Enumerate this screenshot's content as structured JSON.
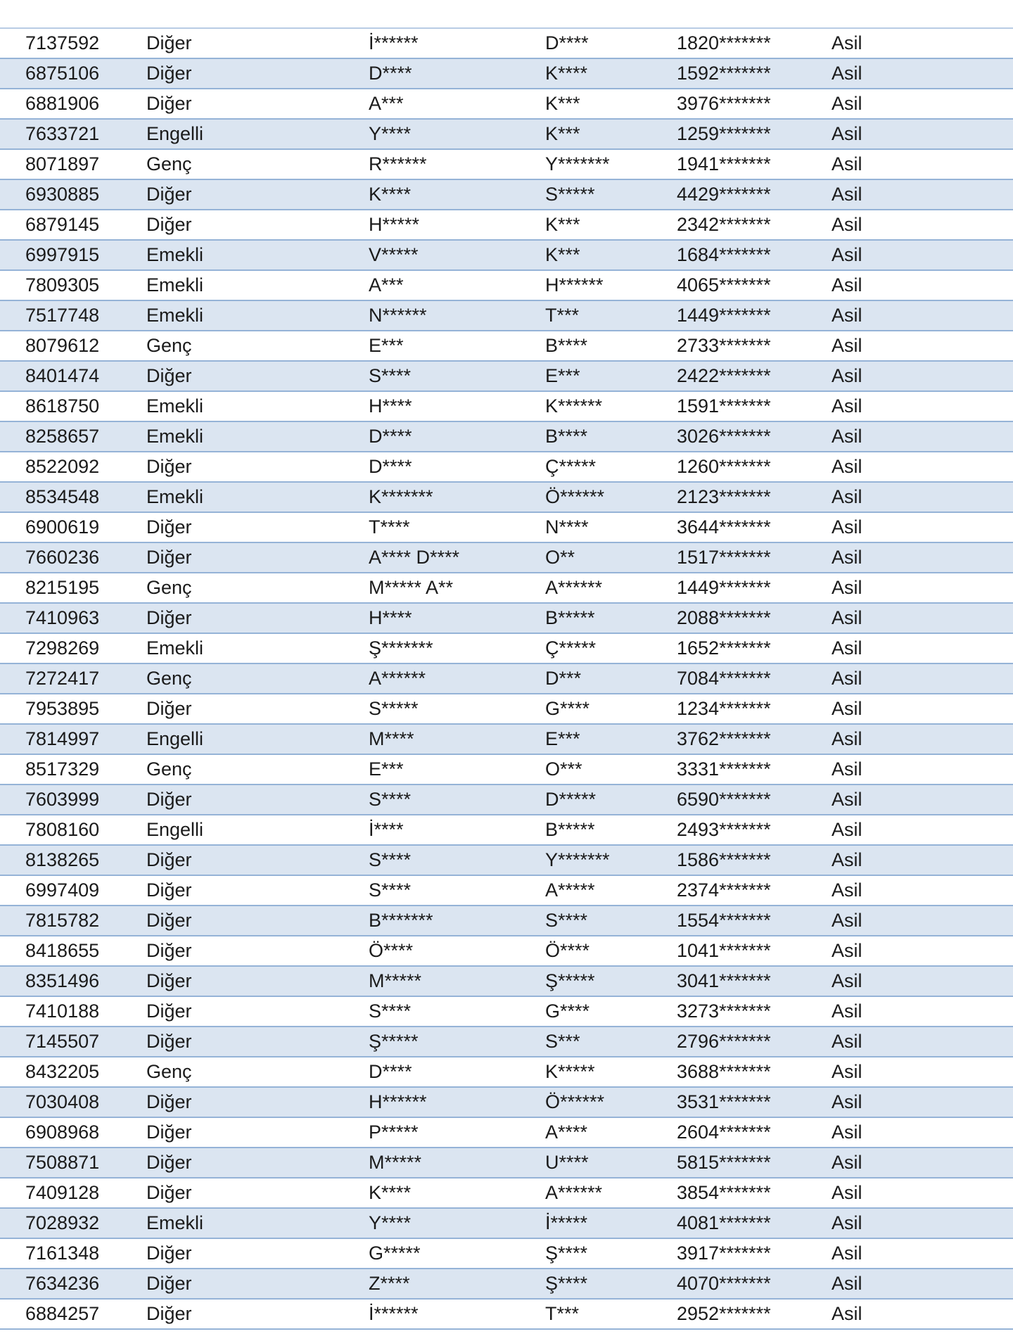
{
  "rows": [
    [
      "7137592",
      "Diğer",
      "İ******",
      "D****",
      "1820*******",
      "Asil"
    ],
    [
      "6875106",
      "Diğer",
      "D****",
      "K****",
      "1592*******",
      "Asil"
    ],
    [
      "6881906",
      "Diğer",
      "A***",
      "K***",
      "3976*******",
      "Asil"
    ],
    [
      "7633721",
      "Engelli",
      "Y****",
      "K***",
      "1259*******",
      "Asil"
    ],
    [
      "8071897",
      "Genç",
      "R******",
      "Y*******",
      "1941*******",
      "Asil"
    ],
    [
      "6930885",
      "Diğer",
      "K****",
      "S*****",
      "4429*******",
      "Asil"
    ],
    [
      "6879145",
      "Diğer",
      "H*****",
      "K***",
      "2342*******",
      "Asil"
    ],
    [
      "6997915",
      "Emekli",
      "V*****",
      "K***",
      "1684*******",
      "Asil"
    ],
    [
      "7809305",
      "Emekli",
      "A***",
      "H******",
      "4065*******",
      "Asil"
    ],
    [
      "7517748",
      "Emekli",
      "N******",
      "T***",
      "1449*******",
      "Asil"
    ],
    [
      "8079612",
      "Genç",
      "E***",
      "B****",
      "2733*******",
      "Asil"
    ],
    [
      "8401474",
      "Diğer",
      "S****",
      "E***",
      "2422*******",
      "Asil"
    ],
    [
      "8618750",
      "Emekli",
      "H****",
      "K******",
      "1591*******",
      "Asil"
    ],
    [
      "8258657",
      "Emekli",
      "D****",
      "B****",
      "3026*******",
      "Asil"
    ],
    [
      "8522092",
      "Diğer",
      "D****",
      "Ç*****",
      "1260*******",
      "Asil"
    ],
    [
      "8534548",
      "Emekli",
      "K*******",
      "Ö******",
      "2123*******",
      "Asil"
    ],
    [
      "6900619",
      "Diğer",
      "T****",
      "N****",
      "3644*******",
      "Asil"
    ],
    [
      "7660236",
      "Diğer",
      "A**** D****",
      "O**",
      "1517*******",
      "Asil"
    ],
    [
      "8215195",
      "Genç",
      "M***** A**",
      "A******",
      "1449*******",
      "Asil"
    ],
    [
      "7410963",
      "Diğer",
      "H****",
      "B*****",
      "2088*******",
      "Asil"
    ],
    [
      "7298269",
      "Emekli",
      "Ş*******",
      "Ç*****",
      "1652*******",
      "Asil"
    ],
    [
      "7272417",
      "Genç",
      "A******",
      "D***",
      "7084*******",
      "Asil"
    ],
    [
      "7953895",
      "Diğer",
      "S*****",
      "G****",
      "1234*******",
      "Asil"
    ],
    [
      "7814997",
      "Engelli",
      "M****",
      "E***",
      "3762*******",
      "Asil"
    ],
    [
      "8517329",
      "Genç",
      "E***",
      "O***",
      "3331*******",
      "Asil"
    ],
    [
      "7603999",
      "Diğer",
      "S****",
      "D*****",
      "6590*******",
      "Asil"
    ],
    [
      "7808160",
      "Engelli",
      "İ****",
      "B*****",
      "2493*******",
      "Asil"
    ],
    [
      "8138265",
      "Diğer",
      "S****",
      "Y*******",
      "1586*******",
      "Asil"
    ],
    [
      "6997409",
      "Diğer",
      "S****",
      "A*****",
      "2374*******",
      "Asil"
    ],
    [
      "7815782",
      "Diğer",
      "B*******",
      "S****",
      "1554*******",
      "Asil"
    ],
    [
      "8418655",
      "Diğer",
      "Ö****",
      "Ö****",
      "1041*******",
      "Asil"
    ],
    [
      "8351496",
      "Diğer",
      "M*****",
      "Ş*****",
      "3041*******",
      "Asil"
    ],
    [
      "7410188",
      "Diğer",
      "S****",
      "G****",
      "3273*******",
      "Asil"
    ],
    [
      "7145507",
      "Diğer",
      "Ş*****",
      "S***",
      "2796*******",
      "Asil"
    ],
    [
      "8432205",
      "Genç",
      "D****",
      "K*****",
      "3688*******",
      "Asil"
    ],
    [
      "7030408",
      "Diğer",
      "H******",
      "Ö******",
      "3531*******",
      "Asil"
    ],
    [
      "6908968",
      "Diğer",
      "P*****",
      "A****",
      "2604*******",
      "Asil"
    ],
    [
      "7508871",
      "Diğer",
      "M*****",
      "U****",
      "5815*******",
      "Asil"
    ],
    [
      "7409128",
      "Diğer",
      "K****",
      "A******",
      "3854*******",
      "Asil"
    ],
    [
      "7028932",
      "Emekli",
      "Y****",
      "İ*****",
      "4081*******",
      "Asil"
    ],
    [
      "7161348",
      "Diğer",
      "G*****",
      "Ş****",
      "3917*******",
      "Asil"
    ],
    [
      "7634236",
      "Diğer",
      "Z****",
      "Ş****",
      "4070*******",
      "Asil"
    ],
    [
      "6884257",
      "Diğer",
      "İ******",
      "T***",
      "2952*******",
      "Asil"
    ]
  ],
  "colors": {
    "stripe": "#dbe5f1",
    "border": "#95b3d7"
  }
}
